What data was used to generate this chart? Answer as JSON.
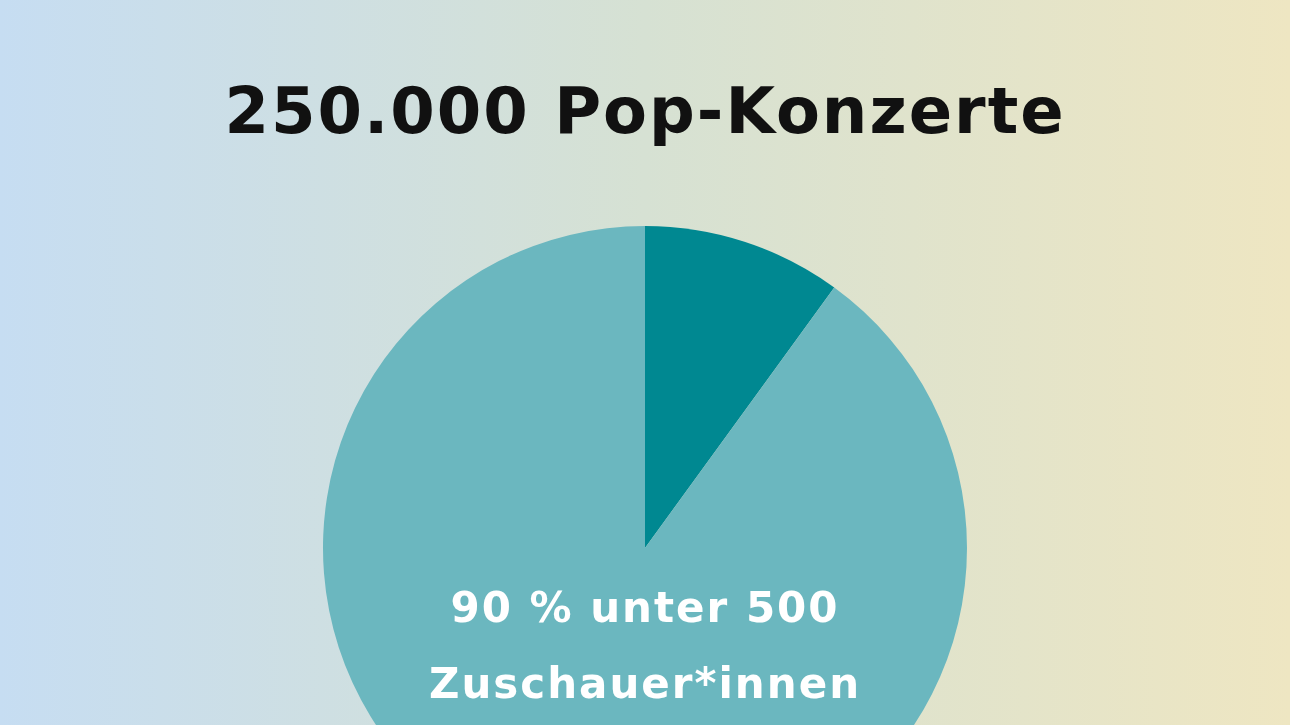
{
  "chart_data": {
    "type": "pie",
    "title": "250.000 Pop-Konzerte",
    "categories": [
      null,
      "unter 500 Zuschauer*innen"
    ],
    "values": [
      10,
      90
    ],
    "value_labels": [
      null,
      "90 %"
    ],
    "colors": [
      "#008891",
      "#6bb7bf"
    ]
  }
}
